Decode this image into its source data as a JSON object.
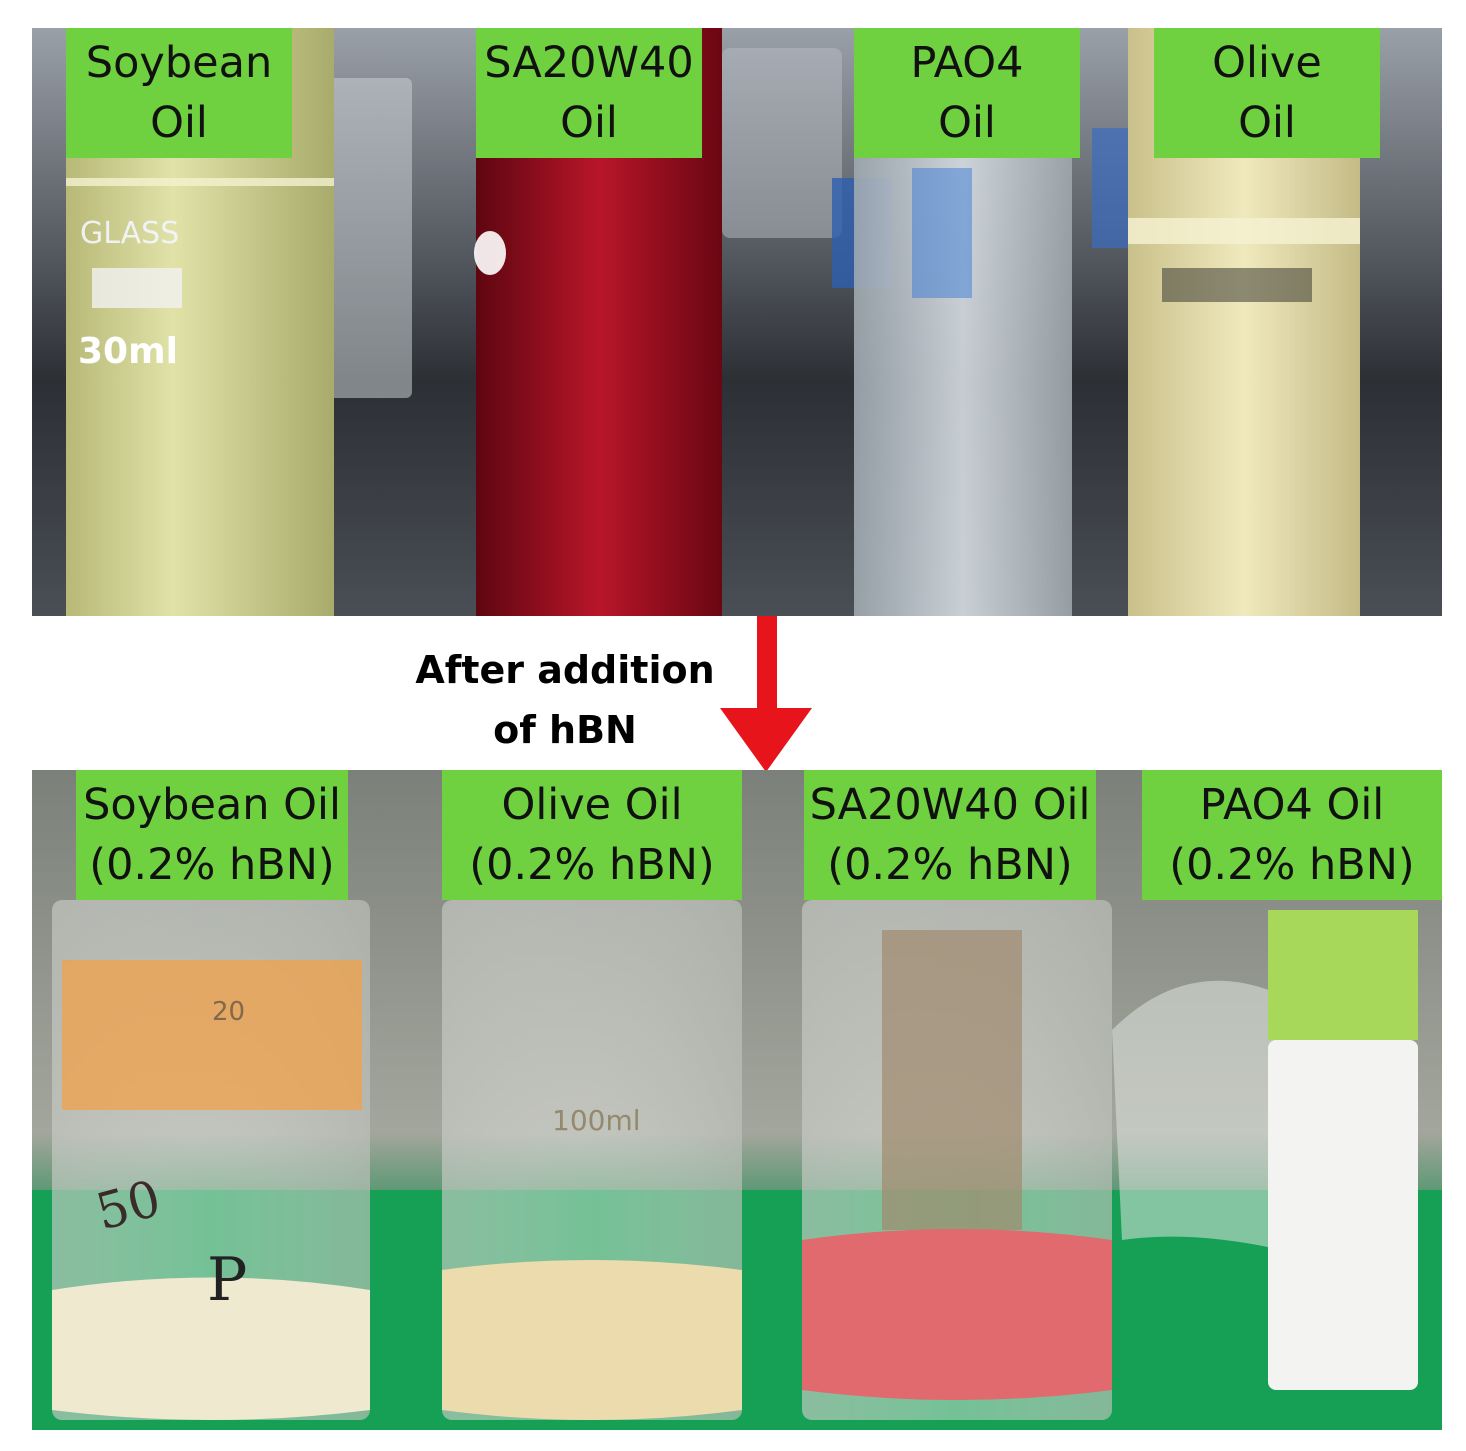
{
  "top_labels": [
    {
      "line1": "Soybean",
      "line2": "Oil"
    },
    {
      "line1": "SA20W40",
      "line2": "Oil"
    },
    {
      "line1": "PAO4",
      "line2": "Oil"
    },
    {
      "line1": "Olive",
      "line2": "Oil"
    }
  ],
  "caption": {
    "line1": "After  addition",
    "line2": "of hBN"
  },
  "bottom_labels": [
    {
      "line1": "Soybean Oil",
      "line2": "(0.2% hBN)"
    },
    {
      "line1": "Olive Oil",
      "line2": "(0.2% hBN)"
    },
    {
      "line1": "SA20W40 Oil",
      "line2": "(0.2% hBN)"
    },
    {
      "line1": "PAO4 Oil",
      "line2": "(0.2% hBN)"
    }
  ],
  "vial_markings": {
    "volume_30ml": "30ml",
    "glass": "GLASS",
    "beaker_100ml": "100ml",
    "beaker_20": "20",
    "handwritten_50": "50",
    "handwritten_p": "P"
  },
  "colors": {
    "label_bg": "#6fd13f",
    "arrow": "#e8141b",
    "soybean": "#d9dc9a",
    "sa20w40": "#a5101f",
    "pao4": "#c9d2da",
    "olive": "#ece4b0",
    "hbn_red": "#e06a6d",
    "bench_green": "#1aa35a"
  }
}
